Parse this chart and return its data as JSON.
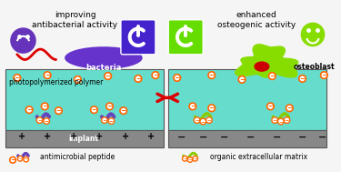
{
  "bg_color": "#f5f5f5",
  "title_left": "improving\nantibacterial activity",
  "title_right": "enhanced\nosteogenic activity",
  "btn_left_color": "#4422cc",
  "btn_right_color": "#66dd00",
  "bacteria_color": "#6633cc",
  "osteoblast_color": "#88dd00",
  "osteoblast_nucleus_color": "#cc0000",
  "polymer_color": "#66ddcc",
  "implant_color": "#888888",
  "implant_label": "implant",
  "polymer_label": "photopolymerized polymer",
  "bacteria_label": "bacteria",
  "osteoblast_label": "osteoblast",
  "legend_peptide": "antimicrobial peptide",
  "legend_ecm": "organic extracellular matrix",
  "arrow_color": "#dd0000",
  "peptide_ring_color": "#ff6600",
  "peptide_body_color": "#6644bb",
  "ecm_line_color": "#88cc00",
  "ecm_ring_color": "#ff6600",
  "sad_face_color": "#6633bb",
  "happy_face_color": "#88dd00",
  "flagellum_color": "#dd0000"
}
